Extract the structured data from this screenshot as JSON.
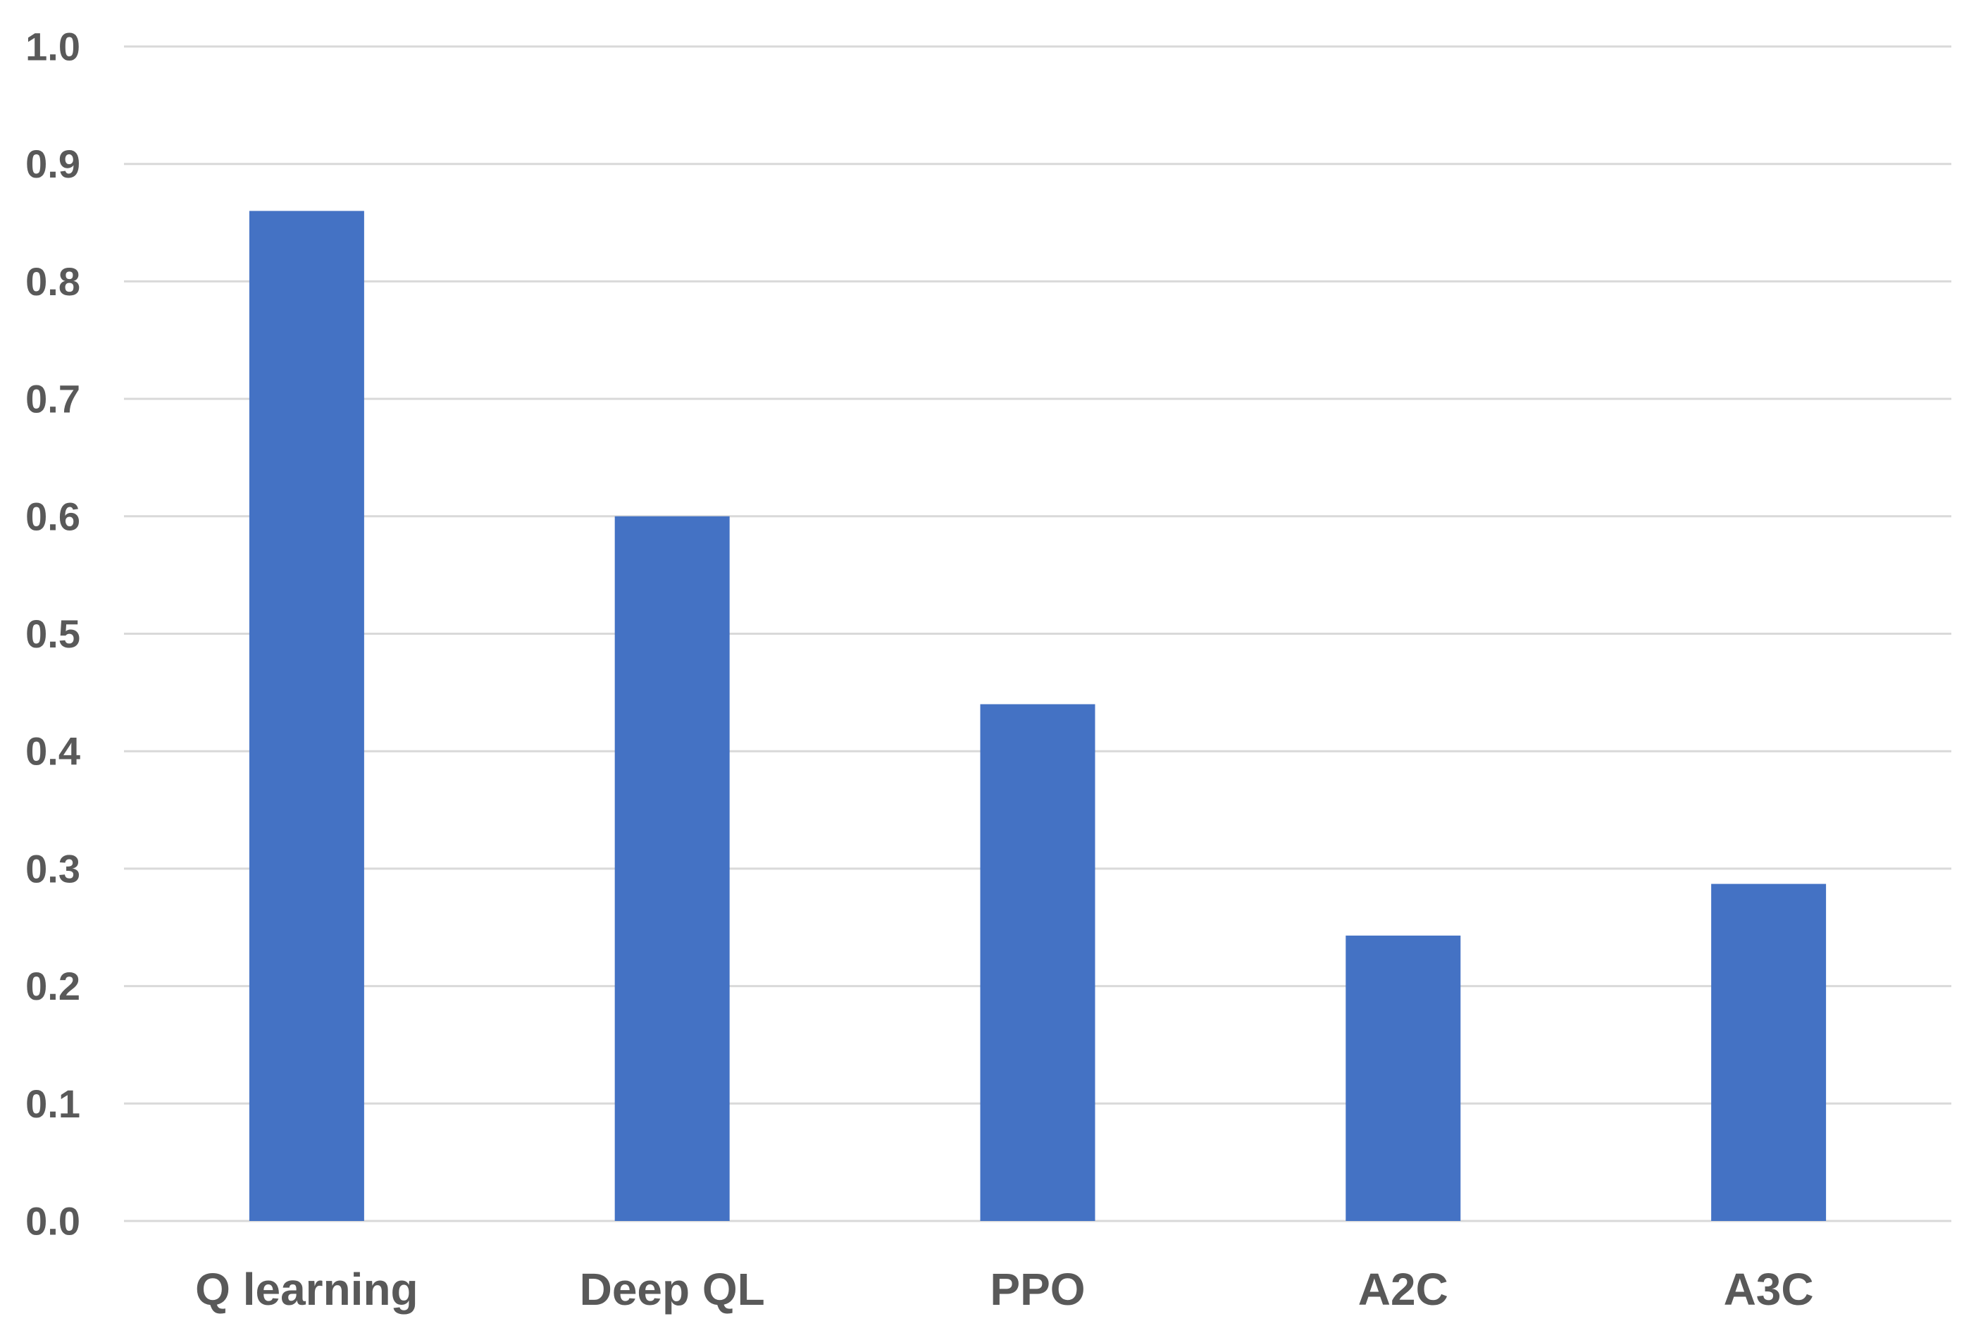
{
  "chart_data": {
    "type": "bar",
    "title": "",
    "xlabel": "",
    "ylabel": "",
    "categories": [
      "Q learning",
      "Deep QL",
      "PPO",
      "A2C",
      "A3C"
    ],
    "values": [
      0.86,
      0.6,
      0.44,
      0.243,
      0.287
    ],
    "ylim": [
      0,
      1.0
    ],
    "yticks": [
      "0.0",
      "0.1",
      "0.2",
      "0.3",
      "0.4",
      "0.5",
      "0.6",
      "0.7",
      "0.8",
      "0.9",
      "1.0"
    ],
    "grid": true,
    "legend": "none",
    "colors": {
      "bar": "#4472C4",
      "grid": "#D9D9D9",
      "text": "#595959"
    }
  }
}
